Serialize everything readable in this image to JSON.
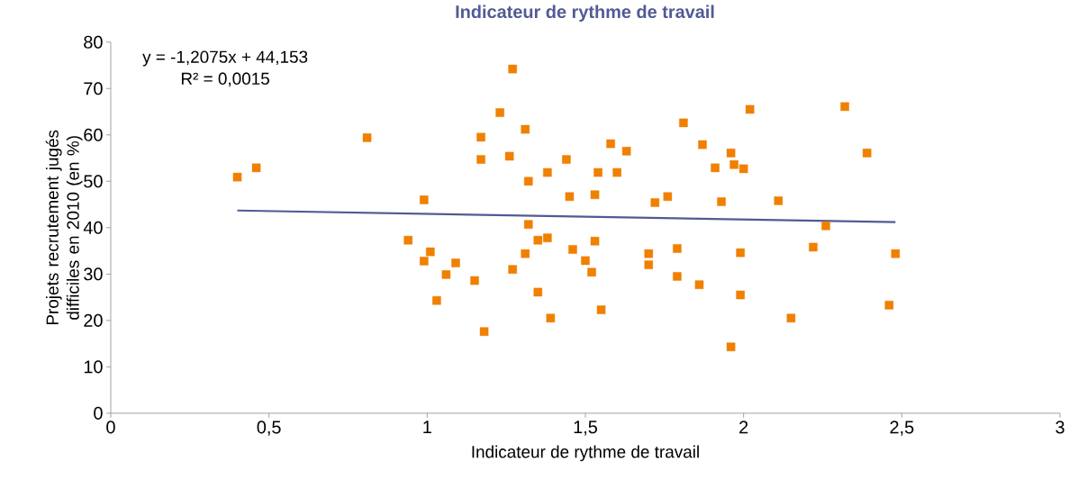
{
  "chart_data": {
    "type": "scatter",
    "title": "Indicateur de rythme de travail",
    "xlabel": "Indicateur de rythme de travail",
    "ylabel": "Projets recrutement jugés difficiles en 2010 (en %)",
    "annotations": [
      "y = -1,2075x + 44,153",
      "R² = 0,0015"
    ],
    "xlim": [
      0,
      3
    ],
    "ylim": [
      0,
      80
    ],
    "xticks": [
      0,
      {
        "value": 0.5,
        "label": "0,5"
      },
      1,
      {
        "value": 1.5,
        "label": "1,5"
      },
      2,
      {
        "value": 2.5,
        "label": "2,5"
      },
      3
    ],
    "yticks": [
      0,
      10,
      20,
      30,
      40,
      50,
      60,
      70,
      80
    ],
    "grid": false,
    "series": [
      {
        "marker": "square",
        "color": "#f08000",
        "x": [
          0.4,
          0.46,
          0.81,
          0.94,
          0.99,
          0.99,
          1.01,
          1.03,
          1.06,
          1.09,
          1.15,
          1.17,
          1.17,
          1.18,
          1.23,
          1.26,
          1.27,
          1.27,
          1.31,
          1.31,
          1.32,
          1.32,
          1.35,
          1.35,
          1.38,
          1.38,
          1.39,
          1.44,
          1.45,
          1.46,
          1.5,
          1.52,
          1.53,
          1.53,
          1.54,
          1.55,
          1.58,
          1.6,
          1.63,
          1.7,
          1.7,
          1.72,
          1.76,
          1.79,
          1.79,
          1.81,
          1.87,
          1.86,
          1.91,
          1.93,
          1.96,
          1.96,
          1.97,
          1.99,
          1.99,
          2.0,
          2.02,
          2.11,
          2.15,
          2.22,
          2.26,
          2.32,
          2.39,
          2.46,
          2.48
        ],
        "values": [
          50.9,
          52.9,
          59.4,
          37.3,
          46.0,
          32.8,
          34.8,
          24.3,
          29.9,
          32.4,
          28.6,
          59.5,
          54.7,
          17.6,
          64.8,
          55.4,
          74.2,
          31.0,
          34.4,
          61.2,
          50.0,
          40.7,
          26.1,
          37.3,
          51.9,
          37.8,
          20.5,
          54.7,
          46.7,
          35.3,
          32.9,
          30.4,
          47.1,
          37.1,
          51.9,
          22.3,
          58.1,
          51.9,
          56.5,
          32.0,
          34.4,
          45.4,
          46.7,
          35.5,
          29.5,
          62.6,
          57.9,
          27.7,
          52.9,
          45.6,
          56.1,
          14.3,
          53.6,
          34.6,
          25.5,
          52.7,
          65.5,
          45.8,
          20.5,
          35.8,
          40.4,
          66.1,
          56.1,
          23.3,
          34.4
        ]
      },
      {
        "type": "line",
        "color": "#525a93",
        "x": [
          0.4,
          2.48
        ],
        "values": [
          43.7,
          41.2
        ]
      }
    ]
  }
}
